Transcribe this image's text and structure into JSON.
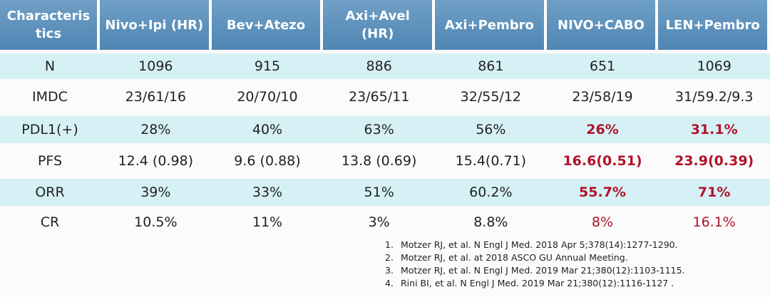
{
  "table": {
    "header": [
      "Characteristics",
      "Nivo+Ipi (HR)",
      "Bev+Atezo",
      "Axi+Avel (HR)",
      "Axi+Pembro",
      "NIVO+CABO",
      "LEN+Pembro"
    ],
    "rows": [
      [
        "N",
        "1096",
        "915",
        "886",
        "861",
        "651",
        "1069"
      ],
      [
        "IMDC",
        "23/61/16",
        "20/70/10",
        "23/65/11",
        "32/55/12",
        "23/58/19",
        "31/59.2/9.3"
      ],
      [
        "PDL1(+)",
        "28%",
        "40%",
        "63%",
        "56%",
        "26%",
        "31.1%"
      ],
      [
        "PFS",
        "12.4 (0.98)",
        "9.6 (0.88)",
        "13.8 (0.69)",
        "15.4(0.71)",
        "16.6(0.51)",
        "23.9(0.39)"
      ],
      [
        "ORR",
        "39%",
        "33%",
        "51%",
        "60.2%",
        "55.7%",
        "71%"
      ],
      [
        "CR",
        "10.5%",
        "11%",
        "3%",
        "8.8%",
        "8%",
        "16.1%"
      ]
    ]
  },
  "references": [
    {
      "number": "1.",
      "text": "Motzer RJ, et al. N Engl J Med. 2018 Apr 5;378(14):1277-1290."
    },
    {
      "number": "2.",
      "text": "Motzer RJ, et al. at 2018 ASCO GU Annual Meeting."
    },
    {
      "number": "3.",
      "text": "Motzer RJ, et al. N Engl J Med. 2019 Mar 21;380(12):1103-1115."
    },
    {
      "number": "4.",
      "text": "Rini BI, et al. N Engl J Med. 2019 Mar 21;380(12):1116-1127 ."
    }
  ]
}
